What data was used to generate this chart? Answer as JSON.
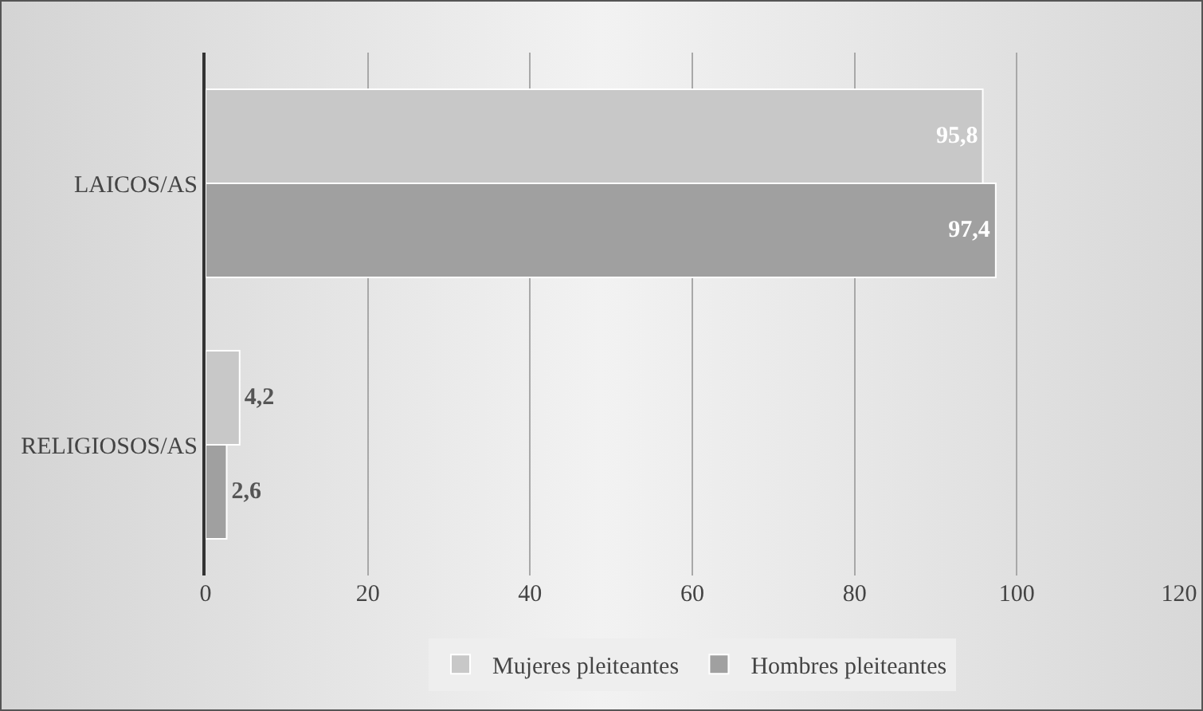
{
  "chart_data": {
    "type": "bar",
    "orientation": "horizontal",
    "categories": [
      "LAICOS/AS",
      "RELIGIOSOS/AS"
    ],
    "series": [
      {
        "name": "Mujeres pleiteantes",
        "color": "#c8c8c8",
        "values": [
          95.8,
          4.2
        ],
        "value_labels": [
          "95,8",
          "4,2"
        ]
      },
      {
        "name": "Hombres pleiteantes",
        "color": "#a0a0a0",
        "values": [
          97.4,
          2.6
        ],
        "value_labels": [
          "97,4",
          "2,6"
        ]
      }
    ],
    "xlim": [
      0,
      120
    ],
    "xticks": [
      0,
      20,
      40,
      60,
      80,
      100,
      120
    ],
    "grid": "x",
    "legend": "bottom"
  }
}
